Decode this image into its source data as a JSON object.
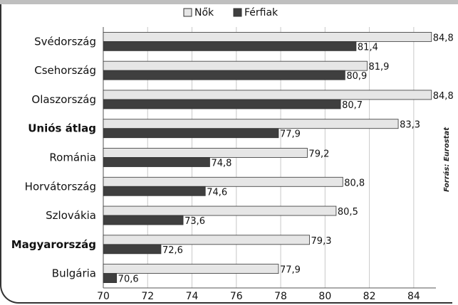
{
  "chart_data": {
    "type": "bar",
    "orientation": "horizontal",
    "categories": [
      "Svédország",
      "Csehország",
      "Olaszország",
      "Uniós átlag",
      "Románia",
      "Horvátország",
      "Szlovákia",
      "Magyarország",
      "Bulgária"
    ],
    "bold_categories": [
      "Uniós átlag",
      "Magyarország"
    ],
    "series": [
      {
        "name": "Nők",
        "color": "#e6e6e6",
        "values": [
          84.8,
          81.9,
          84.8,
          83.3,
          79.2,
          80.8,
          80.5,
          79.3,
          77.9
        ],
        "labels": [
          "84,8",
          "81,9",
          "84,8",
          "83,3",
          "79,2",
          "80,8",
          "80,5",
          "79,3",
          "77,9"
        ]
      },
      {
        "name": "Férfiak",
        "color": "#3f3f3f",
        "values": [
          81.4,
          80.9,
          80.7,
          77.9,
          74.8,
          74.6,
          73.6,
          72.6,
          70.6
        ],
        "labels": [
          "81,4",
          "80,9",
          "80,7",
          "77,9",
          "74,8",
          "74,6",
          "73,6",
          "72,6",
          "70,6"
        ]
      }
    ],
    "xlim": [
      70,
      85
    ],
    "xticks": [
      70,
      72,
      74,
      76,
      78,
      80,
      82,
      84
    ],
    "grid": true,
    "legend_position": "top",
    "source_note": "Forrás: Eurostat"
  }
}
